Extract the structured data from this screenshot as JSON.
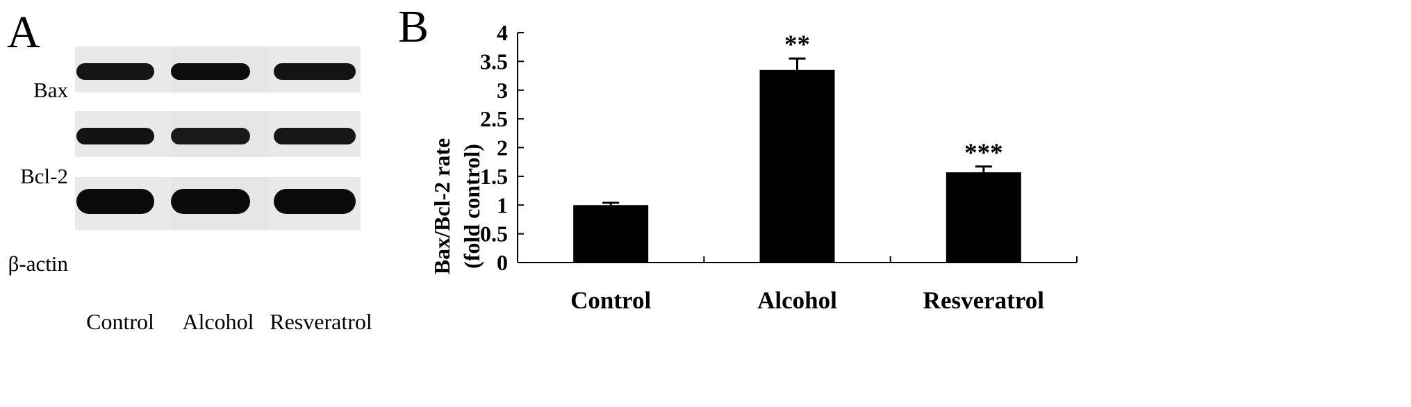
{
  "panel_a": {
    "letter": "A",
    "rows": [
      {
        "label": "Bax",
        "intensities": [
          0.82,
          0.95,
          0.85
        ]
      },
      {
        "label": "Bcl-2",
        "intensities": [
          0.85,
          0.75,
          0.78
        ]
      },
      {
        "label": "β-actin",
        "intensities": [
          1.0,
          1.0,
          1.0
        ]
      }
    ],
    "lanes": [
      "Control",
      "Alcohol",
      "Resveratrol"
    ]
  },
  "panel_b": {
    "letter": "B",
    "colors": {
      "bar": "#000000",
      "axis": "#000000",
      "background": "#ffffff"
    }
  },
  "chart_data": {
    "type": "bar",
    "categories": [
      "Control",
      "Alcohol",
      "Resveratrol"
    ],
    "values": [
      1.0,
      3.35,
      1.57
    ],
    "errors": [
      0.04,
      0.2,
      0.1
    ],
    "significance": [
      "",
      "**",
      "***"
    ],
    "ylabel_line1": "Bax/Bcl-2 rate",
    "ylabel_line2": "(fold control)",
    "ylim": [
      0,
      4
    ],
    "yticks": [
      "0",
      "0.5",
      "1",
      "1.5",
      "2",
      "2.5",
      "3",
      "3.5",
      "4"
    ],
    "grid": false
  }
}
